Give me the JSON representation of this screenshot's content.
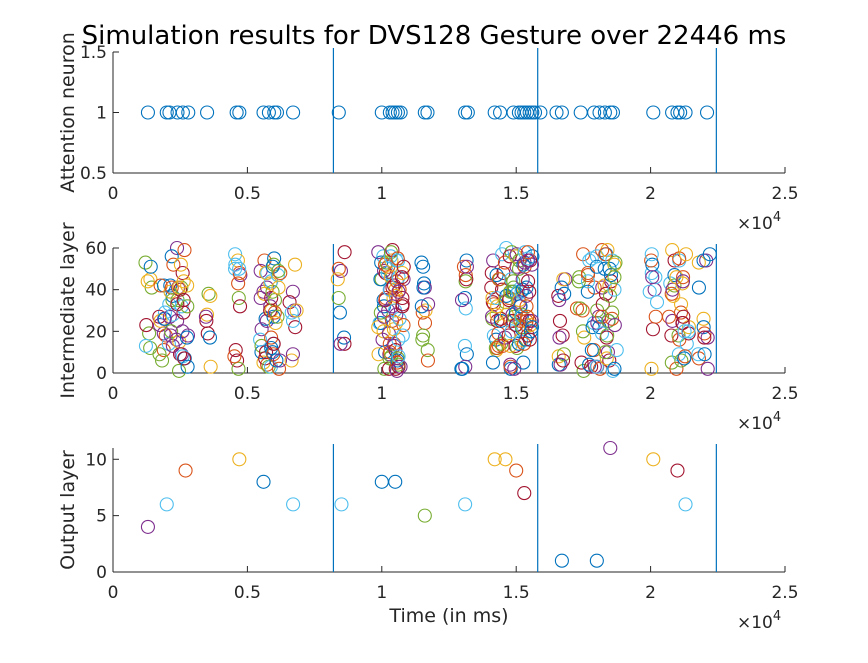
{
  "title": "Simulation results for DVS128 Gesture over 22446 ms",
  "colors": [
    "#0072BD",
    "#D95319",
    "#EDB120",
    "#7E2F8E",
    "#77AC30",
    "#4DBEEE",
    "#A2142F"
  ],
  "chart_data": {
    "type": "scatter",
    "xlim": [
      0,
      25000
    ],
    "xticks": [
      0,
      5000,
      10000,
      15000,
      20000,
      25000
    ],
    "xtick_labels": [
      "0",
      "0.5",
      "1",
      "1.5",
      "2",
      "2.5"
    ],
    "x_exponent": "×10",
    "x_exponent_power": "4",
    "xlabel": "Time (in ms)",
    "vlines": [
      8200,
      15800,
      22446
    ],
    "panels": [
      {
        "ylabel": "Attention neuron",
        "ylim": [
          0.5,
          1.5
        ],
        "yticks": [
          0.5,
          1,
          1.5
        ],
        "ytick_labels": [
          "0.5",
          "1",
          "1.5"
        ],
        "marker_color": "#0072BD",
        "points_x": [
          1300,
          2000,
          2100,
          2400,
          2600,
          2800,
          3500,
          4600,
          4700,
          5600,
          5800,
          6000,
          6100,
          6700,
          8400,
          10000,
          10300,
          10400,
          10500,
          10600,
          10700,
          11600,
          11700,
          13100,
          13200,
          14200,
          14400,
          14900,
          15100,
          15200,
          15300,
          15400,
          15500,
          15600,
          15700,
          15900,
          16500,
          16700,
          17400,
          17900,
          18100,
          18300,
          18500,
          18600,
          20100,
          20800,
          21000,
          21100,
          21300,
          22100
        ],
        "points_y": [
          1,
          1,
          1,
          1,
          1,
          1,
          1,
          1,
          1,
          1,
          1,
          1,
          1,
          1,
          1,
          1,
          1,
          1,
          1,
          1,
          1,
          1,
          1,
          1,
          1,
          1,
          1,
          1,
          1,
          1,
          1,
          1,
          1,
          1,
          1,
          1,
          1,
          1,
          1,
          1,
          1,
          1,
          1,
          1,
          1,
          1,
          1,
          1,
          1,
          1
        ]
      },
      {
        "ylabel": "Intermediate layer",
        "ylim": [
          0,
          60
        ],
        "yticks": [
          0,
          20,
          40,
          60
        ],
        "ytick_labels": [
          "0",
          "20",
          "40",
          "60"
        ],
        "marker_color": "multi"
      },
      {
        "ylabel": "Output layer",
        "ylim": [
          0,
          11
        ],
        "yticks": [
          0,
          5,
          10
        ],
        "ytick_labels": [
          "0",
          "5",
          "10"
        ],
        "marker_color": "multi",
        "points_x": [
          1300,
          2000,
          2700,
          4700,
          5600,
          6700,
          8500,
          10000,
          10500,
          11600,
          13100,
          14200,
          14600,
          15000,
          15300,
          16700,
          18000,
          18500,
          20100,
          21000,
          21300
        ],
        "points_y": [
          4,
          6,
          9,
          10,
          8,
          6,
          6,
          8,
          8,
          5,
          6,
          10,
          10,
          9,
          7,
          1,
          1,
          11,
          10,
          9,
          6
        ],
        "point_colors": [
          "#7E2F8E",
          "#4DBEEE",
          "#D95319",
          "#EDB120",
          "#0072BD",
          "#4DBEEE",
          "#4DBEEE",
          "#0072BD",
          "#0072BD",
          "#77AC30",
          "#4DBEEE",
          "#EDB120",
          "#EDB120",
          "#D95319",
          "#A2142F",
          "#0072BD",
          "#0072BD",
          "#7E2F8E",
          "#EDB120",
          "#A2142F",
          "#4DBEEE"
        ]
      }
    ]
  }
}
